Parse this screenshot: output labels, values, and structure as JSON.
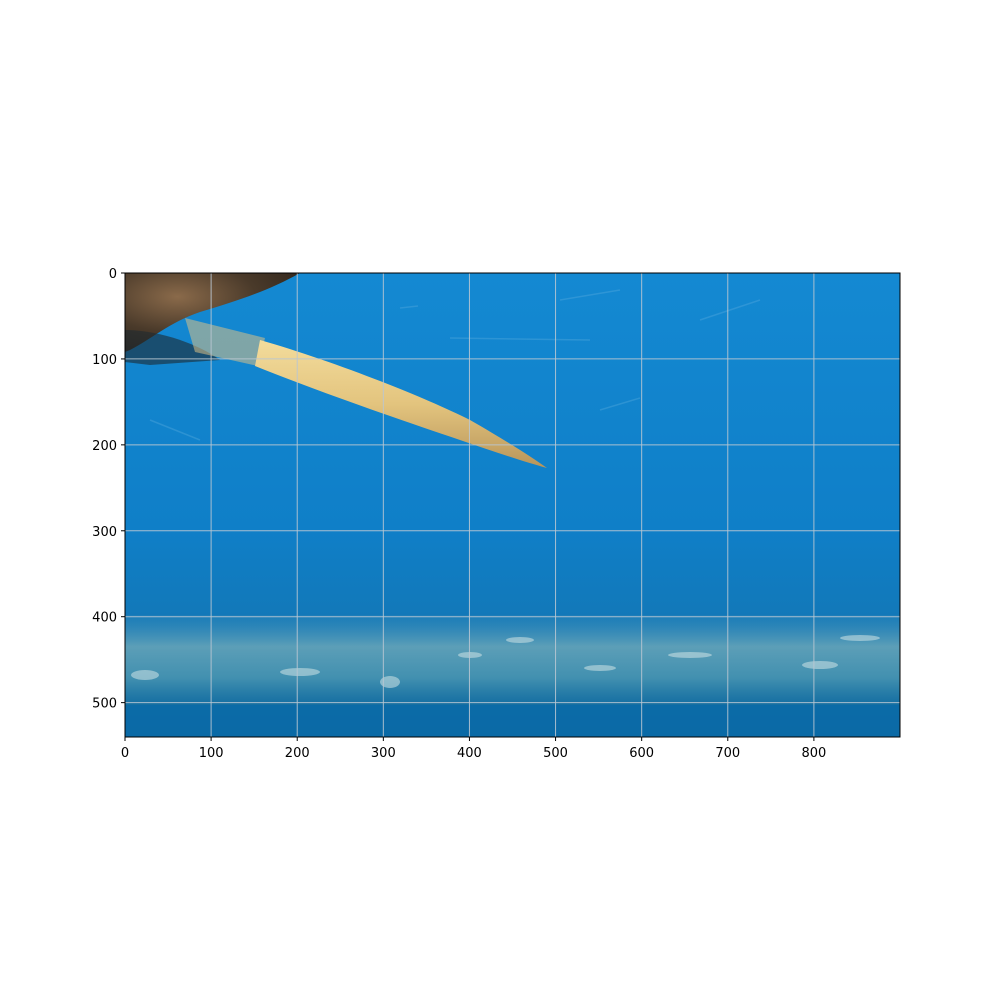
{
  "image": {
    "description_free": true,
    "x_range": [
      0,
      900
    ],
    "y_range": [
      540,
      0
    ],
    "grid": true,
    "colors": {
      "water": "#0f7fc8",
      "water_deep": "#0b6fb4",
      "sediment": "#4f98b0",
      "rod": "#e3c47e",
      "rock": "#3a2e22",
      "grid": "#b9c6d2"
    }
  },
  "axes": {
    "x_ticks": [
      0,
      100,
      200,
      300,
      400,
      500,
      600,
      700,
      800
    ],
    "y_ticks": [
      0,
      100,
      200,
      300,
      400,
      500
    ]
  }
}
